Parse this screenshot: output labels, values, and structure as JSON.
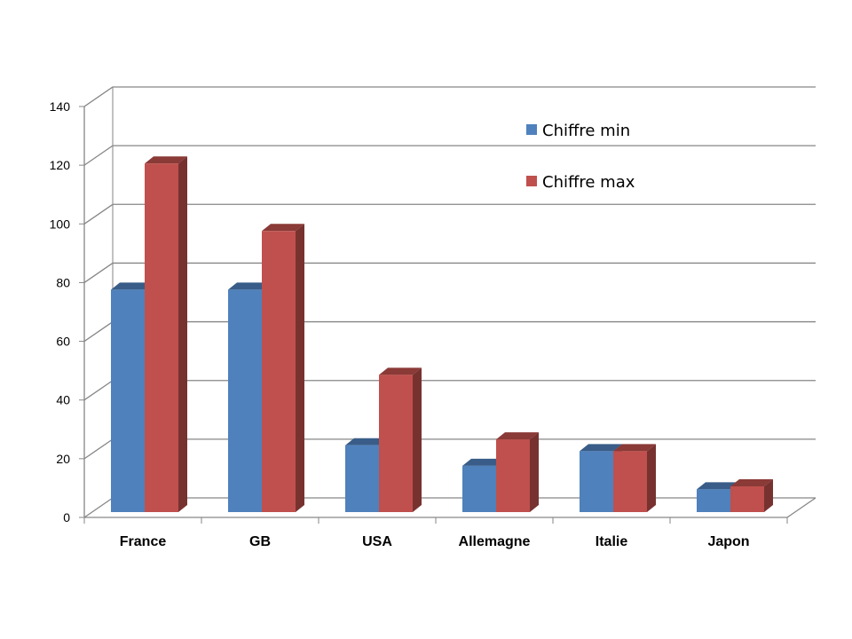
{
  "chart_data": {
    "type": "bar",
    "title": "",
    "xlabel": "",
    "ylabel": "",
    "categories": [
      "France",
      "GB",
      "USA",
      "Allemagne",
      "Italie",
      "Japon"
    ],
    "series": [
      {
        "name": "Chiffre min",
        "values": [
          80,
          80,
          27,
          20,
          25,
          12
        ],
        "color": "#4f81bd"
      },
      {
        "name": "Chiffre max",
        "values": [
          123,
          100,
          51,
          29,
          25,
          13
        ],
        "color": "#c0504d"
      }
    ],
    "ylim": [
      0,
      140
    ],
    "yticks": [
      "0",
      "20",
      "40",
      "60",
      "80",
      "100",
      "120",
      "140"
    ],
    "grid": true,
    "legend": "top-right",
    "style": "3d-clustered-column"
  }
}
